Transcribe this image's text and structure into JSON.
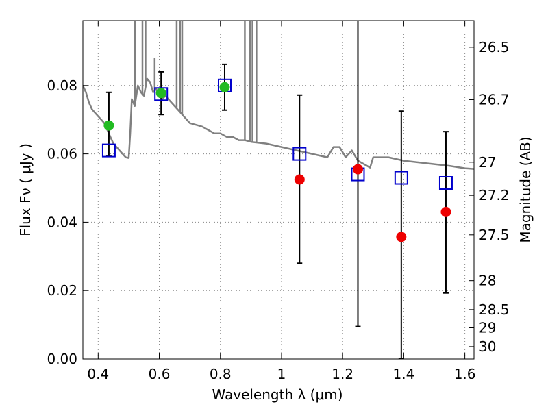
{
  "chart_data": {
    "type": "scatter",
    "xlabel": "Wavelength  λ (μm)",
    "ylabel": "Flux  Fν  ( μJy )",
    "y2label": "Magnitude (AB)",
    "xlim": [
      0.35,
      1.63
    ],
    "ylim": [
      0.0,
      0.099
    ],
    "grid": true,
    "x_ticks": [
      0.4,
      0.6,
      0.8,
      1.0,
      1.2,
      1.4,
      1.6
    ],
    "x_tick_labels": [
      "0.4",
      "0.6",
      "0.8",
      "1",
      "1.2",
      "1.4",
      "1.6"
    ],
    "y_ticks": [
      0.0,
      0.02,
      0.04,
      0.06,
      0.08
    ],
    "y_tick_labels": [
      "0.00",
      "0.02",
      "0.04",
      "0.06",
      "0.08"
    ],
    "mag_ticks": [
      "26.5",
      "26.7",
      "27",
      "27.2",
      "27.5",
      "28",
      "28.5",
      "29",
      "30"
    ],
    "colors": {
      "model": "#808080",
      "model_phot": "#0000cc",
      "detected": "#22bb22",
      "nondetected": "#ee0000",
      "errorbar": "#000000",
      "grid": "#888888"
    },
    "model_spectrum": [
      [
        0.35,
        0.08
      ],
      [
        0.36,
        0.078
      ],
      [
        0.37,
        0.075
      ],
      [
        0.38,
        0.073
      ],
      [
        0.39,
        0.072
      ],
      [
        0.4,
        0.071
      ],
      [
        0.41,
        0.07
      ],
      [
        0.42,
        0.069
      ],
      [
        0.43,
        0.067
      ],
      [
        0.44,
        0.065
      ],
      [
        0.45,
        0.063
      ],
      [
        0.46,
        0.062
      ],
      [
        0.47,
        0.061
      ],
      [
        0.48,
        0.06
      ],
      [
        0.49,
        0.059
      ],
      [
        0.5,
        0.0588
      ],
      [
        0.505,
        0.066
      ],
      [
        0.51,
        0.076
      ],
      [
        0.52,
        0.074
      ],
      [
        0.53,
        0.08
      ],
      [
        0.54,
        0.078
      ],
      [
        0.55,
        0.077
      ],
      [
        0.56,
        0.082
      ],
      [
        0.57,
        0.081
      ],
      [
        0.58,
        0.078
      ],
      [
        0.59,
        0.079
      ],
      [
        0.6,
        0.077
      ],
      [
        0.61,
        0.076
      ],
      [
        0.62,
        0.077
      ],
      [
        0.63,
        0.076
      ],
      [
        0.64,
        0.075
      ],
      [
        0.65,
        0.074
      ],
      [
        0.66,
        0.073
      ],
      [
        0.67,
        0.072
      ],
      [
        0.68,
        0.071
      ],
      [
        0.69,
        0.07
      ],
      [
        0.7,
        0.069
      ],
      [
        0.72,
        0.0685
      ],
      [
        0.74,
        0.068
      ],
      [
        0.76,
        0.067
      ],
      [
        0.78,
        0.066
      ],
      [
        0.8,
        0.066
      ],
      [
        0.82,
        0.065
      ],
      [
        0.84,
        0.065
      ],
      [
        0.86,
        0.064
      ],
      [
        0.88,
        0.064
      ],
      [
        0.9,
        0.0635
      ],
      [
        0.95,
        0.063
      ],
      [
        1.0,
        0.062
      ],
      [
        1.05,
        0.061
      ],
      [
        1.1,
        0.06
      ],
      [
        1.15,
        0.059
      ],
      [
        1.17,
        0.062
      ],
      [
        1.19,
        0.062
      ],
      [
        1.21,
        0.059
      ],
      [
        1.23,
        0.061
      ],
      [
        1.25,
        0.058
      ],
      [
        1.27,
        0.057
      ],
      [
        1.29,
        0.056
      ],
      [
        1.3,
        0.059
      ],
      [
        1.32,
        0.059
      ],
      [
        1.35,
        0.059
      ],
      [
        1.4,
        0.058
      ],
      [
        1.45,
        0.0575
      ],
      [
        1.5,
        0.057
      ],
      [
        1.55,
        0.0565
      ],
      [
        1.6,
        0.0558
      ],
      [
        1.63,
        0.0556
      ]
    ],
    "emission_spikes": [
      [
        0.52,
        0.099
      ],
      [
        0.545,
        0.099
      ],
      [
        0.555,
        0.099
      ],
      [
        0.585,
        0.088
      ],
      [
        0.657,
        0.099
      ],
      [
        0.668,
        0.099
      ],
      [
        0.675,
        0.099
      ],
      [
        0.88,
        0.099
      ],
      [
        0.897,
        0.099
      ],
      [
        0.905,
        0.099
      ],
      [
        0.918,
        0.099
      ]
    ],
    "model_photometry": [
      {
        "x": 0.435,
        "y": 0.061
      },
      {
        "x": 0.606,
        "y": 0.0775
      },
      {
        "x": 0.814,
        "y": 0.08
      },
      {
        "x": 1.059,
        "y": 0.06
      },
      {
        "x": 1.25,
        "y": 0.054
      },
      {
        "x": 1.392,
        "y": 0.053
      },
      {
        "x": 1.538,
        "y": 0.0515
      }
    ],
    "observed": [
      {
        "x": 0.435,
        "y": 0.0683,
        "err_lo": 0.0593,
        "err_hi": 0.078,
        "detected": true
      },
      {
        "x": 0.606,
        "y": 0.0778,
        "err_lo": 0.0715,
        "err_hi": 0.084,
        "detected": true
      },
      {
        "x": 0.814,
        "y": 0.0795,
        "err_lo": 0.0728,
        "err_hi": 0.0862,
        "detected": true
      },
      {
        "x": 1.059,
        "y": 0.0525,
        "err_lo": 0.028,
        "err_hi": 0.0772,
        "detected": false
      },
      {
        "x": 1.25,
        "y": 0.0555,
        "err_lo": 0.0095,
        "err_hi": 0.099,
        "detected": false
      },
      {
        "x": 1.392,
        "y": 0.0357,
        "err_lo": 0.0,
        "err_hi": 0.0725,
        "detected": false
      },
      {
        "x": 1.538,
        "y": 0.043,
        "err_lo": 0.0193,
        "err_hi": 0.0665,
        "detected": false
      }
    ]
  }
}
